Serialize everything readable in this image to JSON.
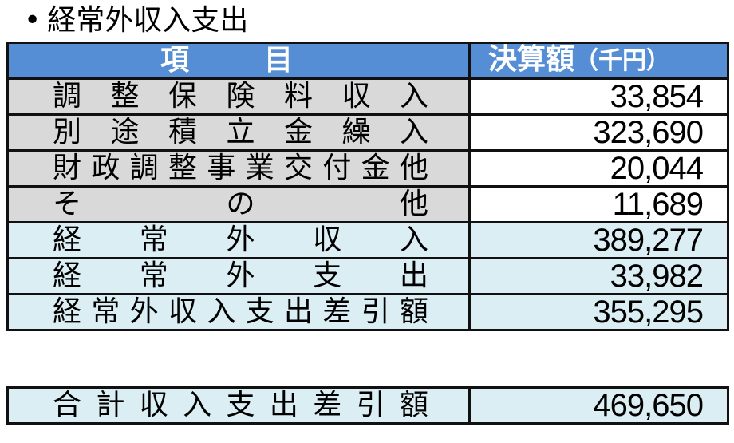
{
  "title": "経常外収入支出",
  "bullet": "•",
  "header": {
    "item": "項　目",
    "amount": "決算額",
    "unit": "（千円）"
  },
  "rows": [
    {
      "label": "調整保険料収入",
      "value": "33,854",
      "style": "gray"
    },
    {
      "label": "別途積立金繰入",
      "value": "323,690",
      "style": "gray"
    },
    {
      "label": "財政調整事業交付金他",
      "value": "20,044",
      "style": "gray"
    },
    {
      "label": "そ　の　他",
      "value": "11,689",
      "style": "gray"
    },
    {
      "label": "経常外収入",
      "value": "389,277",
      "style": "blue"
    },
    {
      "label": "経常外支出",
      "value": "33,982",
      "style": "blue"
    },
    {
      "label": "経常外収入支出差引額",
      "value": "355,295",
      "style": "blue"
    }
  ],
  "total": {
    "label": "合計収入支出差引額",
    "value": "469,650"
  },
  "colors": {
    "header": "#558ed5",
    "gray_row": "#d9d9d9",
    "blue_row": "#dbeef4"
  }
}
